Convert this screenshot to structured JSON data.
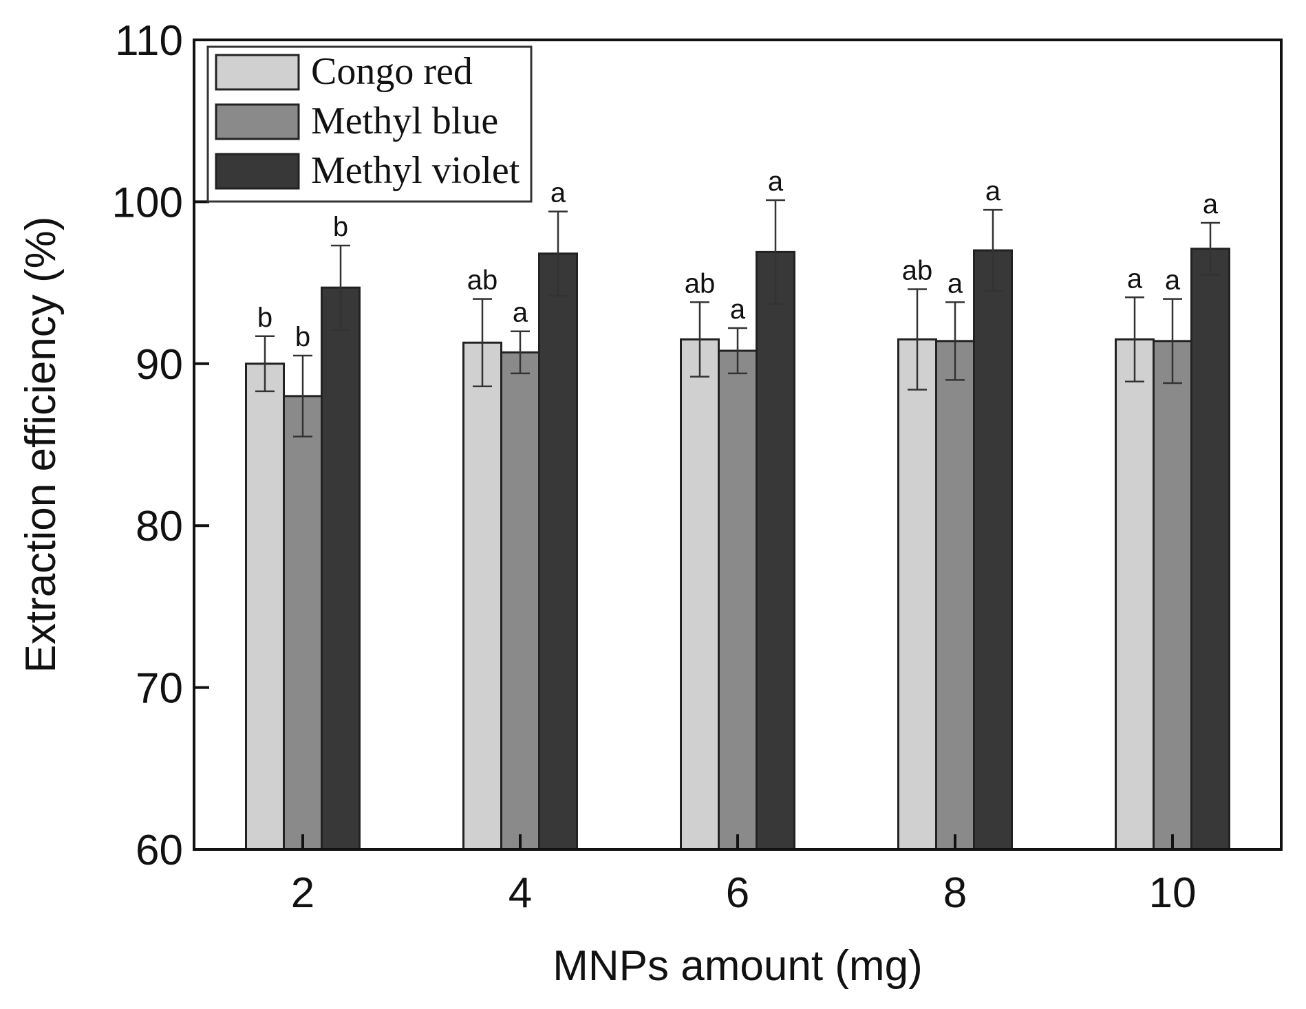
{
  "chart_data": {
    "type": "bar",
    "title": "",
    "xlabel": "MNPs amount (mg)",
    "ylabel": "Extraction efficiency (%)",
    "ylim": [
      60,
      110
    ],
    "yticks": [
      60,
      70,
      80,
      90,
      100,
      110
    ],
    "ytick_labels": [
      "60",
      "70",
      "80",
      "90",
      "100",
      "110"
    ],
    "categories": [
      "2",
      "4",
      "6",
      "8",
      "10"
    ],
    "legend_position": "top-left",
    "grid": false,
    "series": [
      {
        "name": "Congo red",
        "color": "#d0d0d0",
        "values": [
          90.0,
          91.3,
          91.5,
          91.5,
          91.5
        ],
        "errors": [
          1.7,
          2.7,
          2.3,
          3.1,
          2.6
        ],
        "labels": [
          "b",
          "ab",
          "ab",
          "ab",
          "a"
        ]
      },
      {
        "name": "Methyl blue",
        "color": "#8a8a8a",
        "values": [
          88.0,
          90.7,
          90.8,
          91.4,
          91.4
        ],
        "errors": [
          2.5,
          1.3,
          1.4,
          2.4,
          2.6
        ],
        "labels": [
          "b",
          "a",
          "a",
          "a",
          "a"
        ]
      },
      {
        "name": "Methyl violet",
        "color": "#383838",
        "values": [
          94.7,
          96.8,
          96.9,
          97.0,
          97.1
        ],
        "errors": [
          2.6,
          2.6,
          3.2,
          2.5,
          1.6
        ],
        "labels": [
          "b",
          "a",
          "a",
          "a",
          "a"
        ]
      }
    ]
  }
}
